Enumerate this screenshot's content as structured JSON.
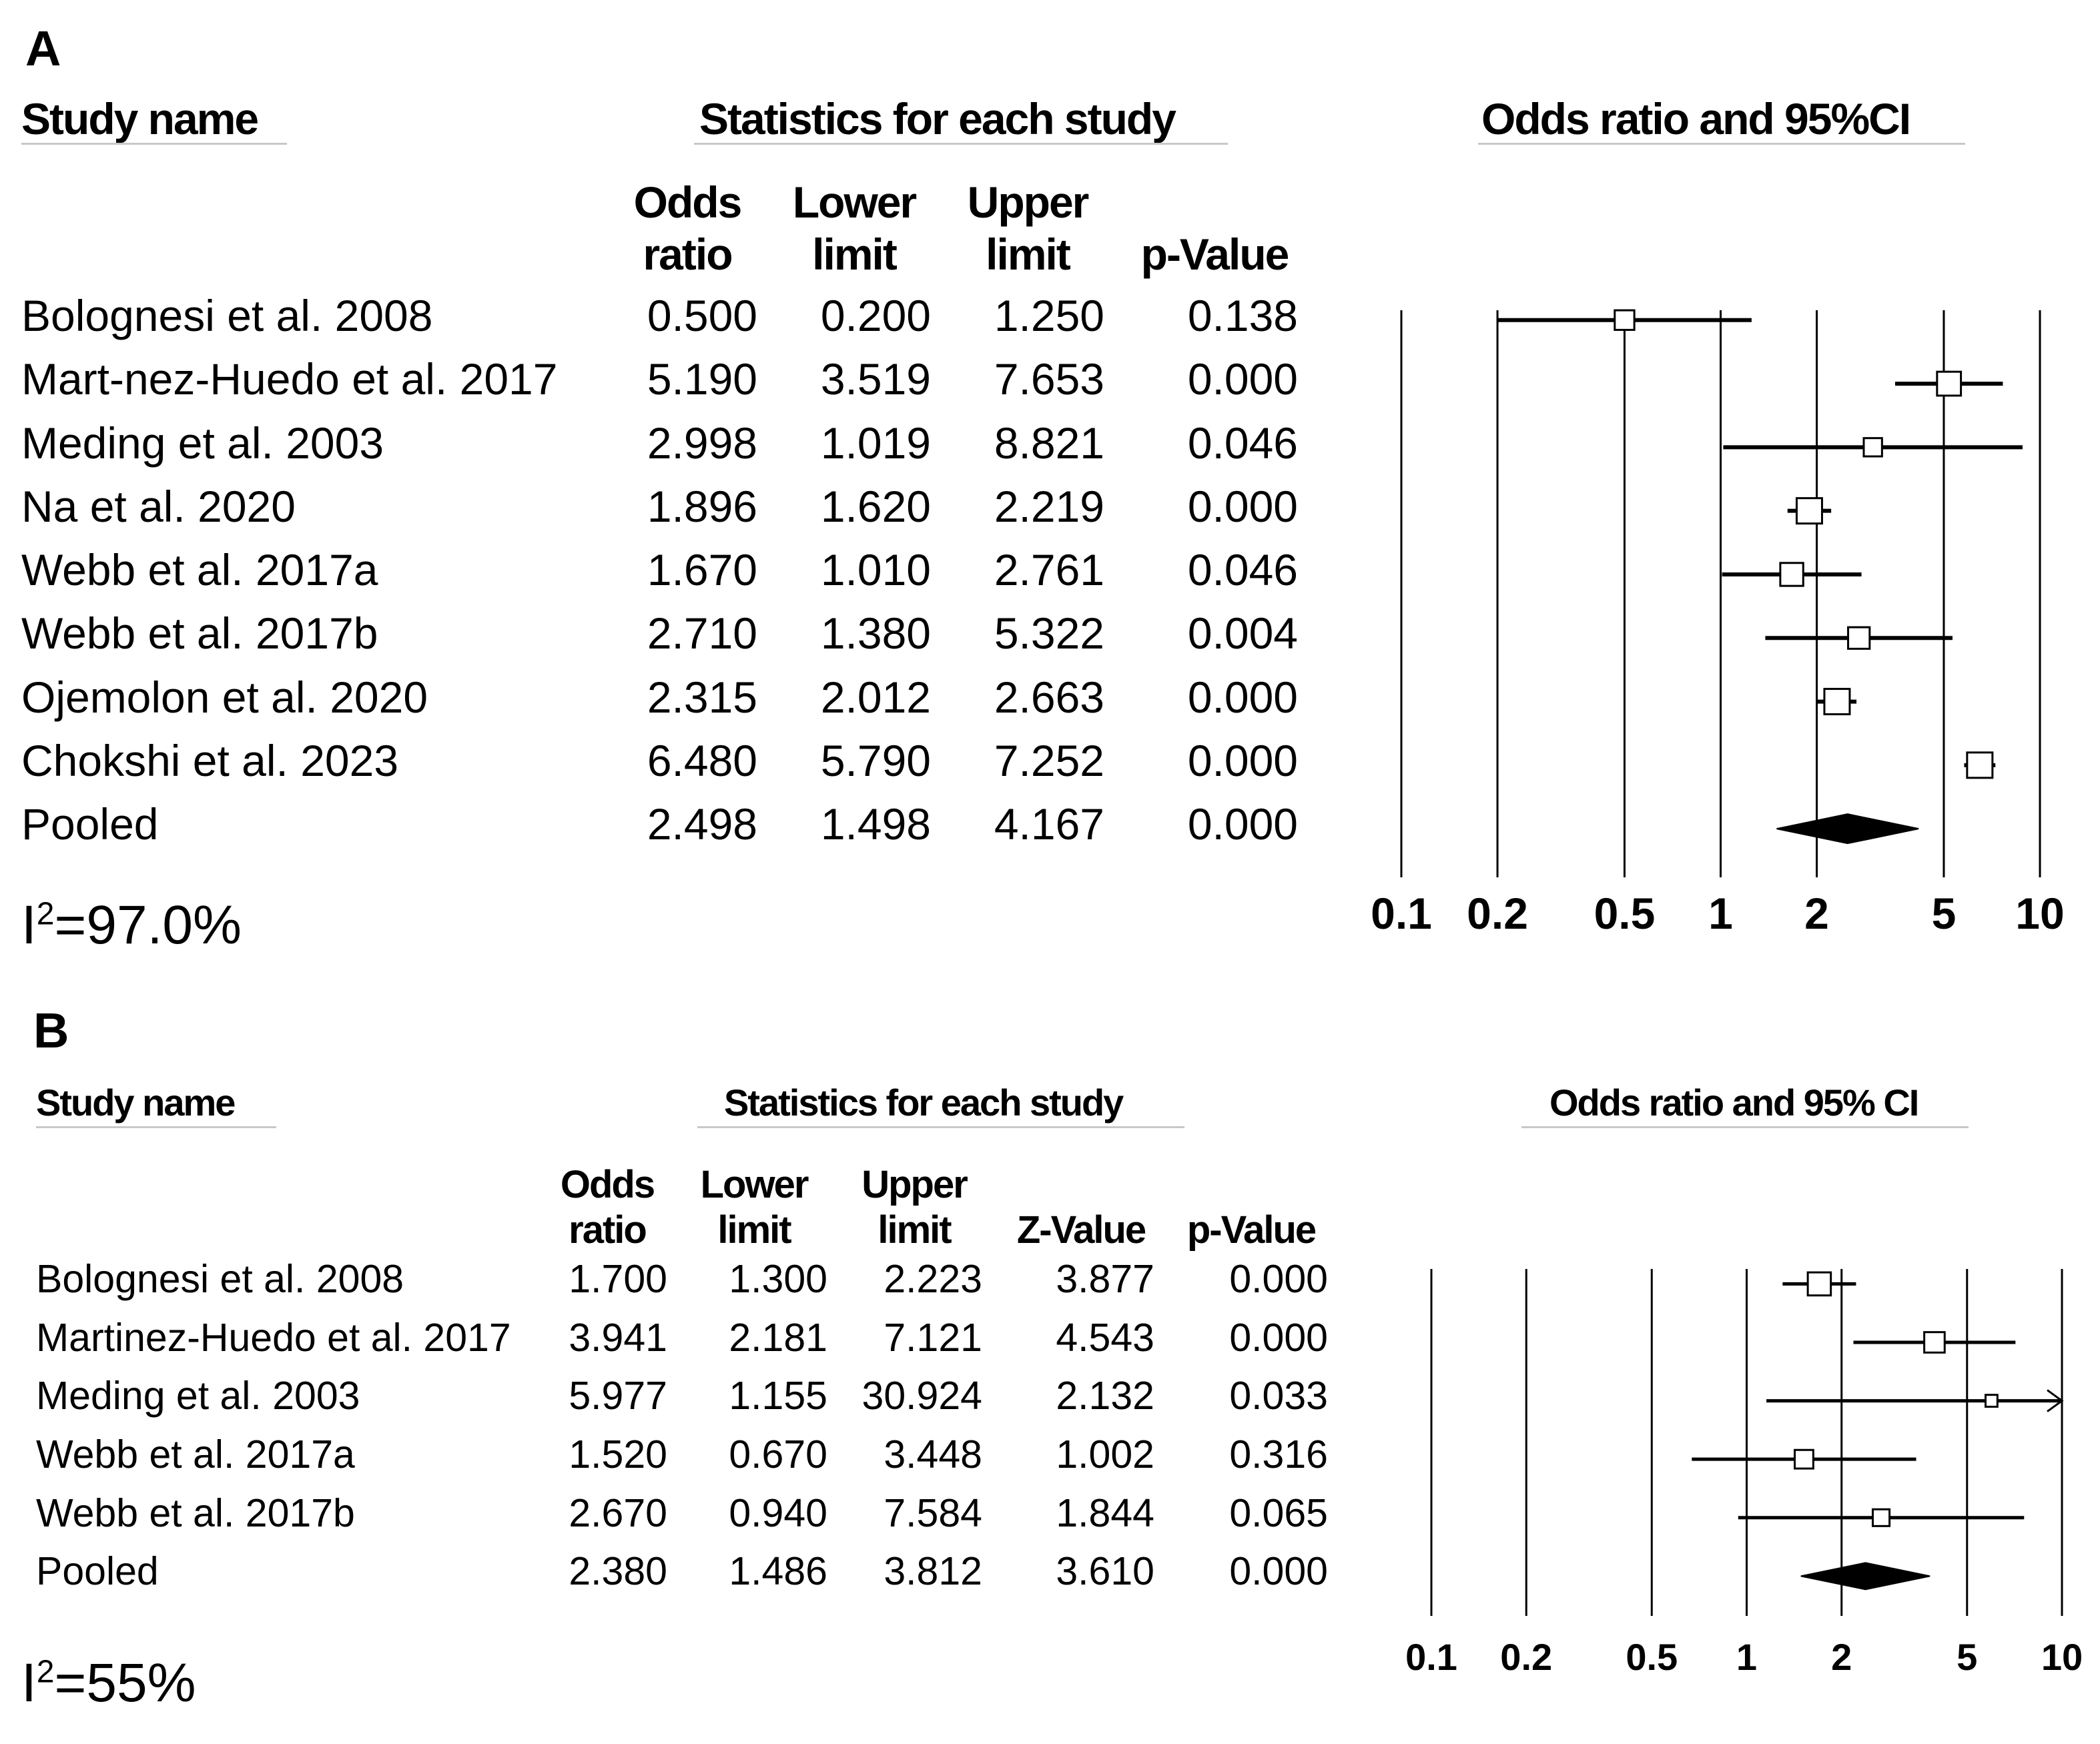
{
  "chart_data": [
    {
      "type": "forest",
      "panel_label": "A",
      "headers": {
        "study": "Study name",
        "stats": "Statistics for each study",
        "plot": "Odds ratio and 95%CI"
      },
      "columns": [
        {
          "key": "or",
          "label1": "Odds",
          "label2": "ratio"
        },
        {
          "key": "lower",
          "label1": "Lower",
          "label2": "limit"
        },
        {
          "key": "upper",
          "label1": "Upper",
          "label2": "limit"
        },
        {
          "key": "p",
          "label1": "",
          "label2": "p-Value"
        }
      ],
      "rows": [
        {
          "study": "Bolognesi et al. 2008",
          "or": "0.500",
          "lower": "0.200",
          "upper": "1.250",
          "p": "0.138",
          "kind": "study"
        },
        {
          "study": "Mart-nez-Huedo et al. 2017",
          "or": "5.190",
          "lower": "3.519",
          "upper": "7.653",
          "p": "0.000",
          "kind": "study"
        },
        {
          "study": "Meding et al. 2003",
          "or": "2.998",
          "lower": "1.019",
          "upper": "8.821",
          "p": "0.046",
          "kind": "study"
        },
        {
          "study": "Na et al. 2020",
          "or": "1.896",
          "lower": "1.620",
          "upper": "2.219",
          "p": "0.000",
          "kind": "study"
        },
        {
          "study": "Webb et al. 2017a",
          "or": "1.670",
          "lower": "1.010",
          "upper": "2.761",
          "p": "0.046",
          "kind": "study"
        },
        {
          "study": "Webb et al. 2017b",
          "or": "2.710",
          "lower": "1.380",
          "upper": "5.322",
          "p": "0.004",
          "kind": "study"
        },
        {
          "study": "Ojemolon et al. 2020",
          "or": "2.315",
          "lower": "2.012",
          "upper": "2.663",
          "p": "0.000",
          "kind": "study"
        },
        {
          "study": "Chokshi et al. 2023",
          "or": "6.480",
          "lower": "5.790",
          "upper": "7.252",
          "p": "0.000",
          "kind": "study"
        },
        {
          "study": "Pooled",
          "or": "2.498",
          "lower": "1.498",
          "upper": "4.167",
          "p": "0.000",
          "kind": "pooled"
        }
      ],
      "heterogeneity": {
        "prefix": "I",
        "sup": "2",
        "value": "=97.0%"
      },
      "xscale": "log",
      "xlim": [
        0.1,
        10
      ],
      "xticks": [
        0.1,
        0.2,
        0.5,
        1,
        2,
        5,
        10
      ],
      "xtick_labels": [
        "0.1",
        "0.2",
        "0.5",
        "1",
        "2",
        "5",
        "10"
      ]
    },
    {
      "type": "forest",
      "panel_label": "B",
      "headers": {
        "study": "Study name",
        "stats": "Statistics for each study",
        "plot": "Odds ratio and 95% CI"
      },
      "columns": [
        {
          "key": "or",
          "label1": "Odds",
          "label2": "ratio"
        },
        {
          "key": "lower",
          "label1": "Lower",
          "label2": "limit"
        },
        {
          "key": "upper",
          "label1": "Upper",
          "label2": "limit"
        },
        {
          "key": "z",
          "label1": "",
          "label2": "Z-Value"
        },
        {
          "key": "p",
          "label1": "",
          "label2": "p-Value"
        }
      ],
      "rows": [
        {
          "study": "Bolognesi et al. 2008",
          "or": "1.700",
          "lower": "1.300",
          "upper": "2.223",
          "z": "3.877",
          "p": "0.000",
          "kind": "study"
        },
        {
          "study": "Martinez-Huedo et al. 2017",
          "or": "3.941",
          "lower": "2.181",
          "upper": "7.121",
          "z": "4.543",
          "p": "0.000",
          "kind": "study"
        },
        {
          "study": "Meding et al. 2003",
          "or": "5.977",
          "lower": "1.155",
          "upper": "30.924",
          "z": "2.132",
          "p": "0.033",
          "kind": "study"
        },
        {
          "study": "Webb et al. 2017a",
          "or": "1.520",
          "lower": "0.670",
          "upper": "3.448",
          "z": "1.002",
          "p": "0.316",
          "kind": "study"
        },
        {
          "study": "Webb et al. 2017b",
          "or": "2.670",
          "lower": "0.940",
          "upper": "7.584",
          "z": "1.844",
          "p": "0.065",
          "kind": "study"
        },
        {
          "study": "Pooled",
          "or": "2.380",
          "lower": "1.486",
          "upper": "3.812",
          "z": "3.610",
          "p": "0.000",
          "kind": "pooled"
        }
      ],
      "heterogeneity": {
        "prefix": "I",
        "sup": "2",
        "value": "=55%"
      },
      "xscale": "log",
      "xlim": [
        0.1,
        10
      ],
      "xticks": [
        0.1,
        0.2,
        0.5,
        1,
        2,
        5,
        10
      ],
      "xtick_labels": [
        "0.1",
        "0.2",
        "0.5",
        "1",
        "2",
        "5",
        "10"
      ]
    }
  ]
}
